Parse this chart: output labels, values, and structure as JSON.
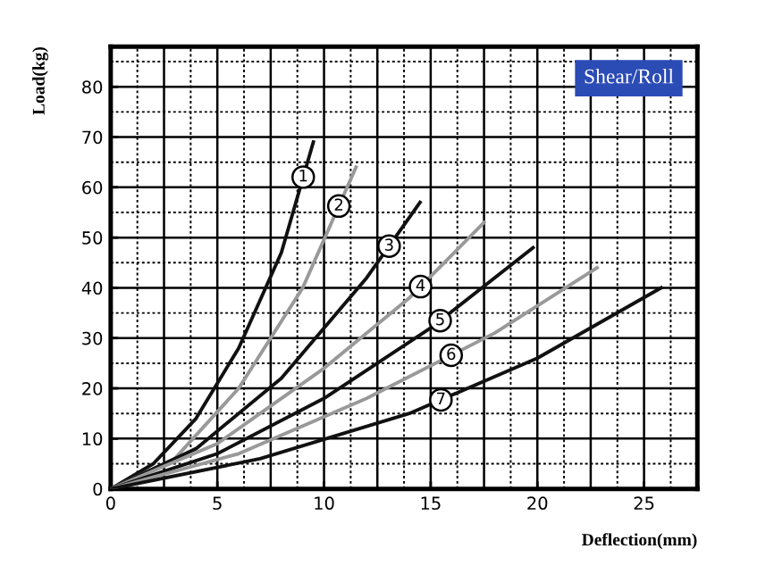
{
  "chart_data": {
    "type": "line",
    "title": "Shear/Roll",
    "xlabel": "Deflection(mm)",
    "ylabel": "Load(kg)",
    "xlim": [
      0,
      27.5
    ],
    "ylim": [
      0,
      88
    ],
    "xticks": [
      0,
      5,
      10,
      15,
      20,
      25
    ],
    "yticks": [
      0,
      10,
      20,
      30,
      40,
      50,
      60,
      70,
      80
    ],
    "grid": true,
    "legend": false,
    "marker": "none",
    "line_style": "solid",
    "series": [
      {
        "name": "1",
        "color": "#111111",
        "x": [
          0,
          2,
          4,
          6,
          8,
          9.5
        ],
        "values": [
          0,
          5,
          14,
          28,
          47,
          69
        ]
      },
      {
        "name": "2",
        "color": "#999999",
        "x": [
          0,
          3,
          6,
          9,
          11.5
        ],
        "values": [
          0,
          6,
          20,
          40,
          64
        ]
      },
      {
        "name": "3",
        "color": "#111111",
        "x": [
          0,
          4,
          8,
          12,
          14.5
        ],
        "values": [
          0,
          8,
          22,
          42,
          57
        ]
      },
      {
        "name": "4",
        "color": "#999999",
        "x": [
          0,
          5,
          10,
          14,
          17.5
        ],
        "values": [
          0,
          9,
          24,
          38,
          53
        ]
      },
      {
        "name": "5",
        "color": "#111111",
        "x": [
          0,
          5,
          10,
          15,
          19.8
        ],
        "values": [
          0,
          7,
          18,
          32,
          48
        ]
      },
      {
        "name": "6",
        "color": "#999999",
        "x": [
          0,
          6,
          12,
          18,
          22.8
        ],
        "values": [
          0,
          7,
          18,
          31,
          44
        ]
      },
      {
        "name": "7",
        "color": "#111111",
        "x": [
          0,
          7,
          14,
          20,
          25.8
        ],
        "values": [
          0,
          6,
          15,
          26,
          40
        ]
      }
    ]
  }
}
